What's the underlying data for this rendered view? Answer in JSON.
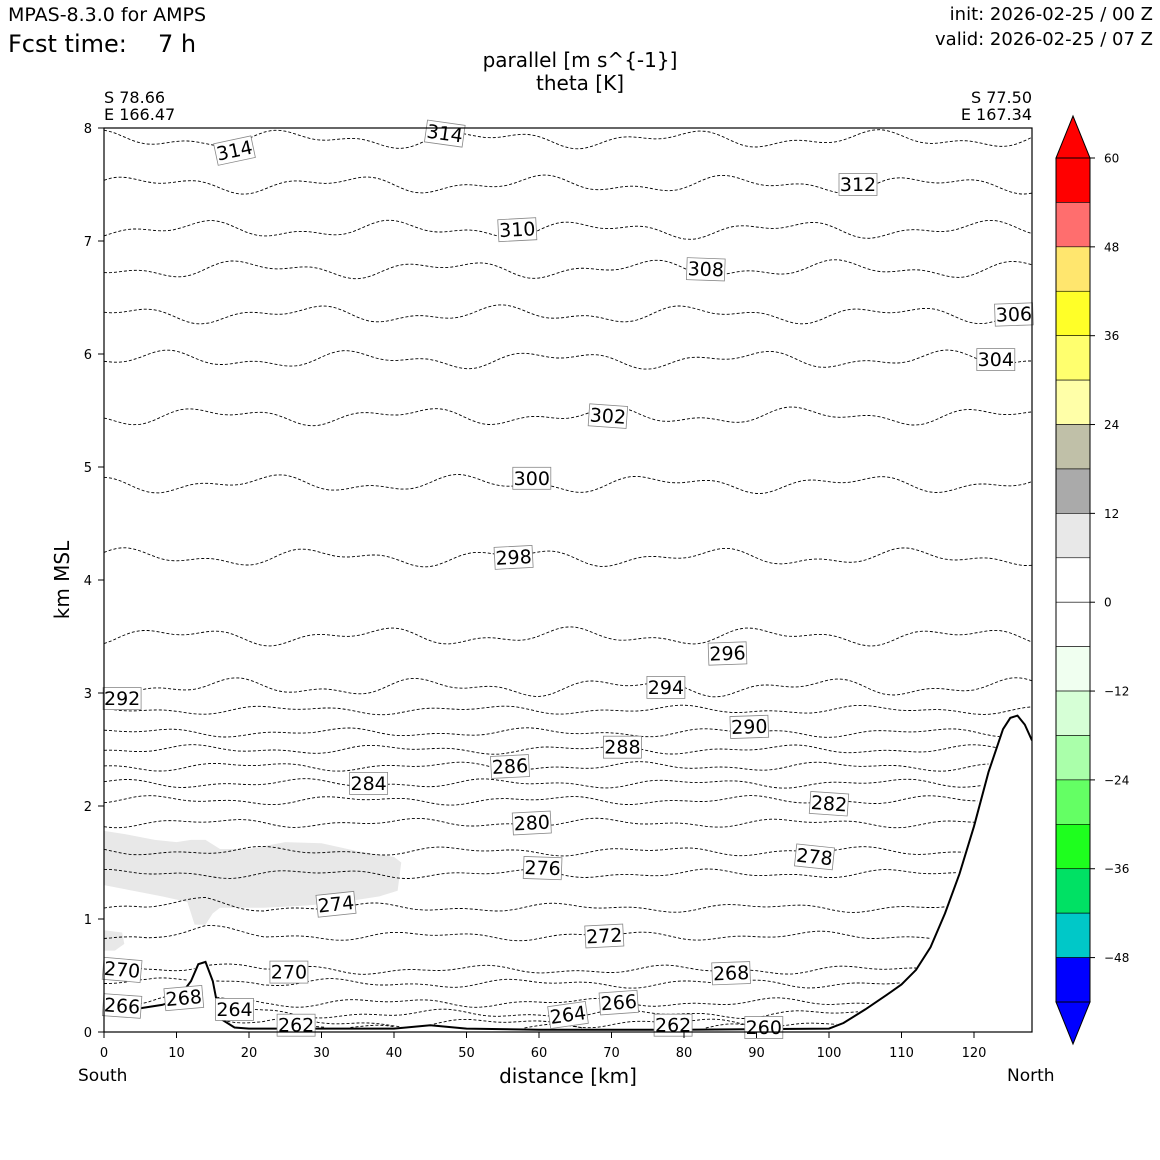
{
  "header": {
    "model": "MPAS-8.3.0 for AMPS",
    "fcst_label": "Fcst time:",
    "fcst_value": "7 h",
    "init": "init: 2026-02-25 / 00 Z",
    "valid": "valid: 2026-02-25 / 07 Z"
  },
  "chart_data": {
    "type": "cross-section",
    "title": "parallel [m s^{-1}]",
    "subtitle": "theta [K]",
    "xlabel": "distance [km]",
    "ylabel": "km MSL",
    "xlim": [
      0,
      128
    ],
    "ylim": [
      0,
      8
    ],
    "xticks": [
      0,
      10,
      20,
      30,
      40,
      50,
      60,
      70,
      80,
      90,
      100,
      110,
      120
    ],
    "yticks": [
      0,
      1,
      2,
      3,
      4,
      5,
      6,
      7,
      8
    ],
    "start": {
      "lat": "S 78.66",
      "lon": "E 166.47",
      "label": "South"
    },
    "end": {
      "lat": "S 77.50",
      "lon": "E 167.34",
      "label": "North"
    },
    "terrain": {
      "x": [
        0,
        4,
        8,
        10,
        12,
        13,
        14,
        15,
        16,
        18,
        20,
        25,
        30,
        40,
        45,
        50,
        60,
        80,
        100,
        102,
        105,
        108,
        110,
        112,
        114,
        116,
        118,
        120,
        122,
        124,
        125,
        126,
        127,
        128
      ],
      "top": [
        0.18,
        0.2,
        0.24,
        0.28,
        0.45,
        0.6,
        0.62,
        0.45,
        0.12,
        0.04,
        0.03,
        0.03,
        0.03,
        0.03,
        0.06,
        0.03,
        0.02,
        0.02,
        0.03,
        0.08,
        0.2,
        0.33,
        0.42,
        0.55,
        0.75,
        1.05,
        1.4,
        1.82,
        2.3,
        2.68,
        2.78,
        2.8,
        2.72,
        2.58
      ]
    },
    "theta_contours": [
      {
        "level": 260,
        "y": 0.03
      },
      {
        "level": 262,
        "y": 0.08
      },
      {
        "level": 264,
        "y": 0.16
      },
      {
        "level": 266,
        "y": 0.26
      },
      {
        "level": 268,
        "y": 0.43
      },
      {
        "level": 270,
        "y": 0.55
      },
      {
        "level": 272,
        "y": 0.85
      },
      {
        "level": 274,
        "y": 1.1
      },
      {
        "level": 276,
        "y": 1.4
      },
      {
        "level": 278,
        "y": 1.6
      },
      {
        "level": 280,
        "y": 1.85
      },
      {
        "level": 282,
        "y": 2.05
      },
      {
        "level": 284,
        "y": 2.2
      },
      {
        "level": 286,
        "y": 2.35
      },
      {
        "level": 288,
        "y": 2.5
      },
      {
        "level": 290,
        "y": 2.65
      },
      {
        "level": 292,
        "y": 2.85
      },
      {
        "level": 294,
        "y": 3.05
      },
      {
        "level": 296,
        "y": 3.5
      },
      {
        "level": 298,
        "y": 4.2
      },
      {
        "level": 300,
        "y": 4.85
      },
      {
        "level": 302,
        "y": 5.45
      },
      {
        "level": 304,
        "y": 5.95
      },
      {
        "level": 306,
        "y": 6.35
      },
      {
        "level": 308,
        "y": 6.75
      },
      {
        "level": 310,
        "y": 7.1
      },
      {
        "level": 312,
        "y": 7.5
      },
      {
        "level": 314,
        "y": 7.9
      }
    ],
    "contour_labels": [
      {
        "text": "314",
        "x": 18,
        "y": 7.8,
        "rot": -12
      },
      {
        "text": "314",
        "x": 47,
        "y": 7.95,
        "rot": 8
      },
      {
        "text": "312",
        "x": 104,
        "y": 7.5,
        "rot": 0
      },
      {
        "text": "310",
        "x": 57,
        "y": 7.1,
        "rot": -3
      },
      {
        "text": "308",
        "x": 83,
        "y": 6.75,
        "rot": 2
      },
      {
        "text": "306",
        "x": 125.5,
        "y": 6.35,
        "rot": -2
      },
      {
        "text": "304",
        "x": 123,
        "y": 5.95,
        "rot": 0
      },
      {
        "text": "302",
        "x": 69.5,
        "y": 5.45,
        "rot": 4
      },
      {
        "text": "300",
        "x": 59,
        "y": 4.9,
        "rot": 0
      },
      {
        "text": "298",
        "x": 56.5,
        "y": 4.2,
        "rot": -3
      },
      {
        "text": "296",
        "x": 86,
        "y": 3.35,
        "rot": -2
      },
      {
        "text": "294",
        "x": 77.5,
        "y": 3.05,
        "rot": 0
      },
      {
        "text": "292",
        "x": 2.5,
        "y": 2.95,
        "rot": 0
      },
      {
        "text": "290",
        "x": 89,
        "y": 2.7,
        "rot": -2
      },
      {
        "text": "288",
        "x": 71.5,
        "y": 2.52,
        "rot": 0
      },
      {
        "text": "286",
        "x": 56,
        "y": 2.35,
        "rot": -3
      },
      {
        "text": "284",
        "x": 36.5,
        "y": 2.2,
        "rot": 0
      },
      {
        "text": "282",
        "x": 100,
        "y": 2.02,
        "rot": 4
      },
      {
        "text": "280",
        "x": 59,
        "y": 1.85,
        "rot": -3
      },
      {
        "text": "278",
        "x": 98,
        "y": 1.55,
        "rot": 6
      },
      {
        "text": "276",
        "x": 60.5,
        "y": 1.45,
        "rot": 2
      },
      {
        "text": "274",
        "x": 32,
        "y": 1.13,
        "rot": -6
      },
      {
        "text": "272",
        "x": 69,
        "y": 0.85,
        "rot": -3
      },
      {
        "text": "270",
        "x": 2.5,
        "y": 0.55,
        "rot": 5
      },
      {
        "text": "270",
        "x": 25.5,
        "y": 0.53,
        "rot": 0
      },
      {
        "text": "268",
        "x": 11,
        "y": 0.3,
        "rot": -5
      },
      {
        "text": "268",
        "x": 86.5,
        "y": 0.52,
        "rot": -2
      },
      {
        "text": "266",
        "x": 2.5,
        "y": 0.23,
        "rot": 4
      },
      {
        "text": "266",
        "x": 71,
        "y": 0.26,
        "rot": -4
      },
      {
        "text": "264",
        "x": 18,
        "y": 0.2,
        "rot": 0
      },
      {
        "text": "264",
        "x": 64,
        "y": 0.15,
        "rot": -8
      },
      {
        "text": "262",
        "x": 26.5,
        "y": 0.06,
        "rot": 0
      },
      {
        "text": "262",
        "x": 78.5,
        "y": 0.06,
        "rot": 0
      },
      {
        "text": "260",
        "x": 91,
        "y": 0.04,
        "rot": 0
      }
    ],
    "shading": [
      {
        "name": "weak-positive-region",
        "range": "0 to 12",
        "color": "#e8e8e8",
        "poly": [
          [
            0,
            1.78
          ],
          [
            3,
            1.75
          ],
          [
            7,
            1.7
          ],
          [
            10,
            1.68
          ],
          [
            12,
            1.7
          ],
          [
            14,
            1.7
          ],
          [
            16,
            1.62
          ],
          [
            20,
            1.62
          ],
          [
            25,
            1.68
          ],
          [
            30,
            1.67
          ],
          [
            35,
            1.6
          ],
          [
            40,
            1.55
          ],
          [
            41,
            1.5
          ],
          [
            40.5,
            1.25
          ],
          [
            38,
            1.2
          ],
          [
            33,
            1.15
          ],
          [
            28,
            1.12
          ],
          [
            22,
            1.1
          ],
          [
            16,
            1.1
          ],
          [
            15,
            1.05
          ],
          [
            14,
            0.95
          ],
          [
            12.5,
            0.95
          ],
          [
            11.5,
            1.15
          ],
          [
            8,
            1.2
          ],
          [
            4,
            1.25
          ],
          [
            0,
            1.3
          ]
        ]
      },
      {
        "name": "weak-positive-spot",
        "range": "0 to 12",
        "color": "#e8e8e8",
        "poly": [
          [
            0,
            0.9
          ],
          [
            2.5,
            0.88
          ],
          [
            2.8,
            0.78
          ],
          [
            1.5,
            0.72
          ],
          [
            0,
            0.72
          ]
        ]
      }
    ],
    "colorbar": {
      "ticks": [
        60,
        48,
        36,
        24,
        12,
        0,
        -12,
        -24,
        -36,
        -48
      ],
      "tick_labels": [
        "60",
        "48",
        "36",
        "24",
        "12",
        "0",
        "−12",
        "−24",
        "−36",
        "−48"
      ],
      "segments": [
        {
          "from": 60,
          "to": 70,
          "color": "#ff0000"
        },
        {
          "from": 54,
          "to": 60,
          "color": "#ff0000"
        },
        {
          "from": 48,
          "to": 54,
          "color": "#ff6e6e"
        },
        {
          "from": 42,
          "to": 48,
          "color": "#ffe66e"
        },
        {
          "from": 36,
          "to": 42,
          "color": "#ffff28"
        },
        {
          "from": 30,
          "to": 36,
          "color": "#ffff6e"
        },
        {
          "from": 24,
          "to": 30,
          "color": "#ffffa8"
        },
        {
          "from": 18,
          "to": 24,
          "color": "#c0c0a8"
        },
        {
          "from": 12,
          "to": 18,
          "color": "#aaaaaa"
        },
        {
          "from": 6,
          "to": 12,
          "color": "#e8e8e8"
        },
        {
          "from": 0,
          "to": 6,
          "color": "#ffffff"
        },
        {
          "from": -6,
          "to": 0,
          "color": "#ffffff"
        },
        {
          "from": -12,
          "to": -6,
          "color": "#f0fff0"
        },
        {
          "from": -18,
          "to": -12,
          "color": "#d6ffd6"
        },
        {
          "from": -24,
          "to": -18,
          "color": "#aaffaa"
        },
        {
          "from": -30,
          "to": -24,
          "color": "#64ff64"
        },
        {
          "from": -36,
          "to": -30,
          "color": "#1eff1e"
        },
        {
          "from": -42,
          "to": -36,
          "color": "#00e164"
        },
        {
          "from": -48,
          "to": -42,
          "color": "#00c8c8"
        },
        {
          "from": -54,
          "to": -48,
          "color": "#0000ff"
        },
        {
          "from": -64,
          "to": -54,
          "color": "#0000ff"
        }
      ]
    }
  }
}
